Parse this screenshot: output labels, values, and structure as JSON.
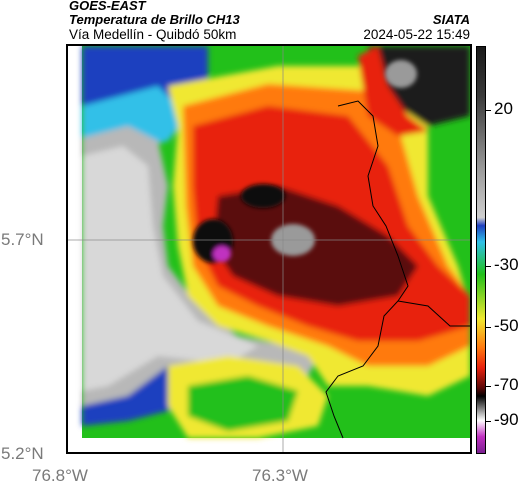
{
  "header": {
    "satellite": "GOES-EAST",
    "product": "Temperatura de Brillo CH13",
    "route": "Vía Medellín - Quibdó 50km",
    "organization": "SIATA",
    "datetime": "2024-05-22 15:49"
  },
  "axes": {
    "lat_labels": [
      "5.7°N",
      "5.2°N"
    ],
    "lon_labels": [
      "76.8°W",
      "76.3°W"
    ]
  },
  "colorbar": {
    "labels": [
      "20",
      "-30",
      "-50",
      "-70",
      "-90"
    ],
    "colors": {
      "warm_top": "#1a1a1a",
      "gray": "#9a9a9a",
      "blue": "#1f3fbf",
      "cyan": "#30c0e8",
      "green": "#22c01a",
      "yellow": "#f0e830",
      "orange": "#ff7a10",
      "red": "#e8220e",
      "dark_red": "#5a0808",
      "magenta": "#c030c0"
    }
  }
}
